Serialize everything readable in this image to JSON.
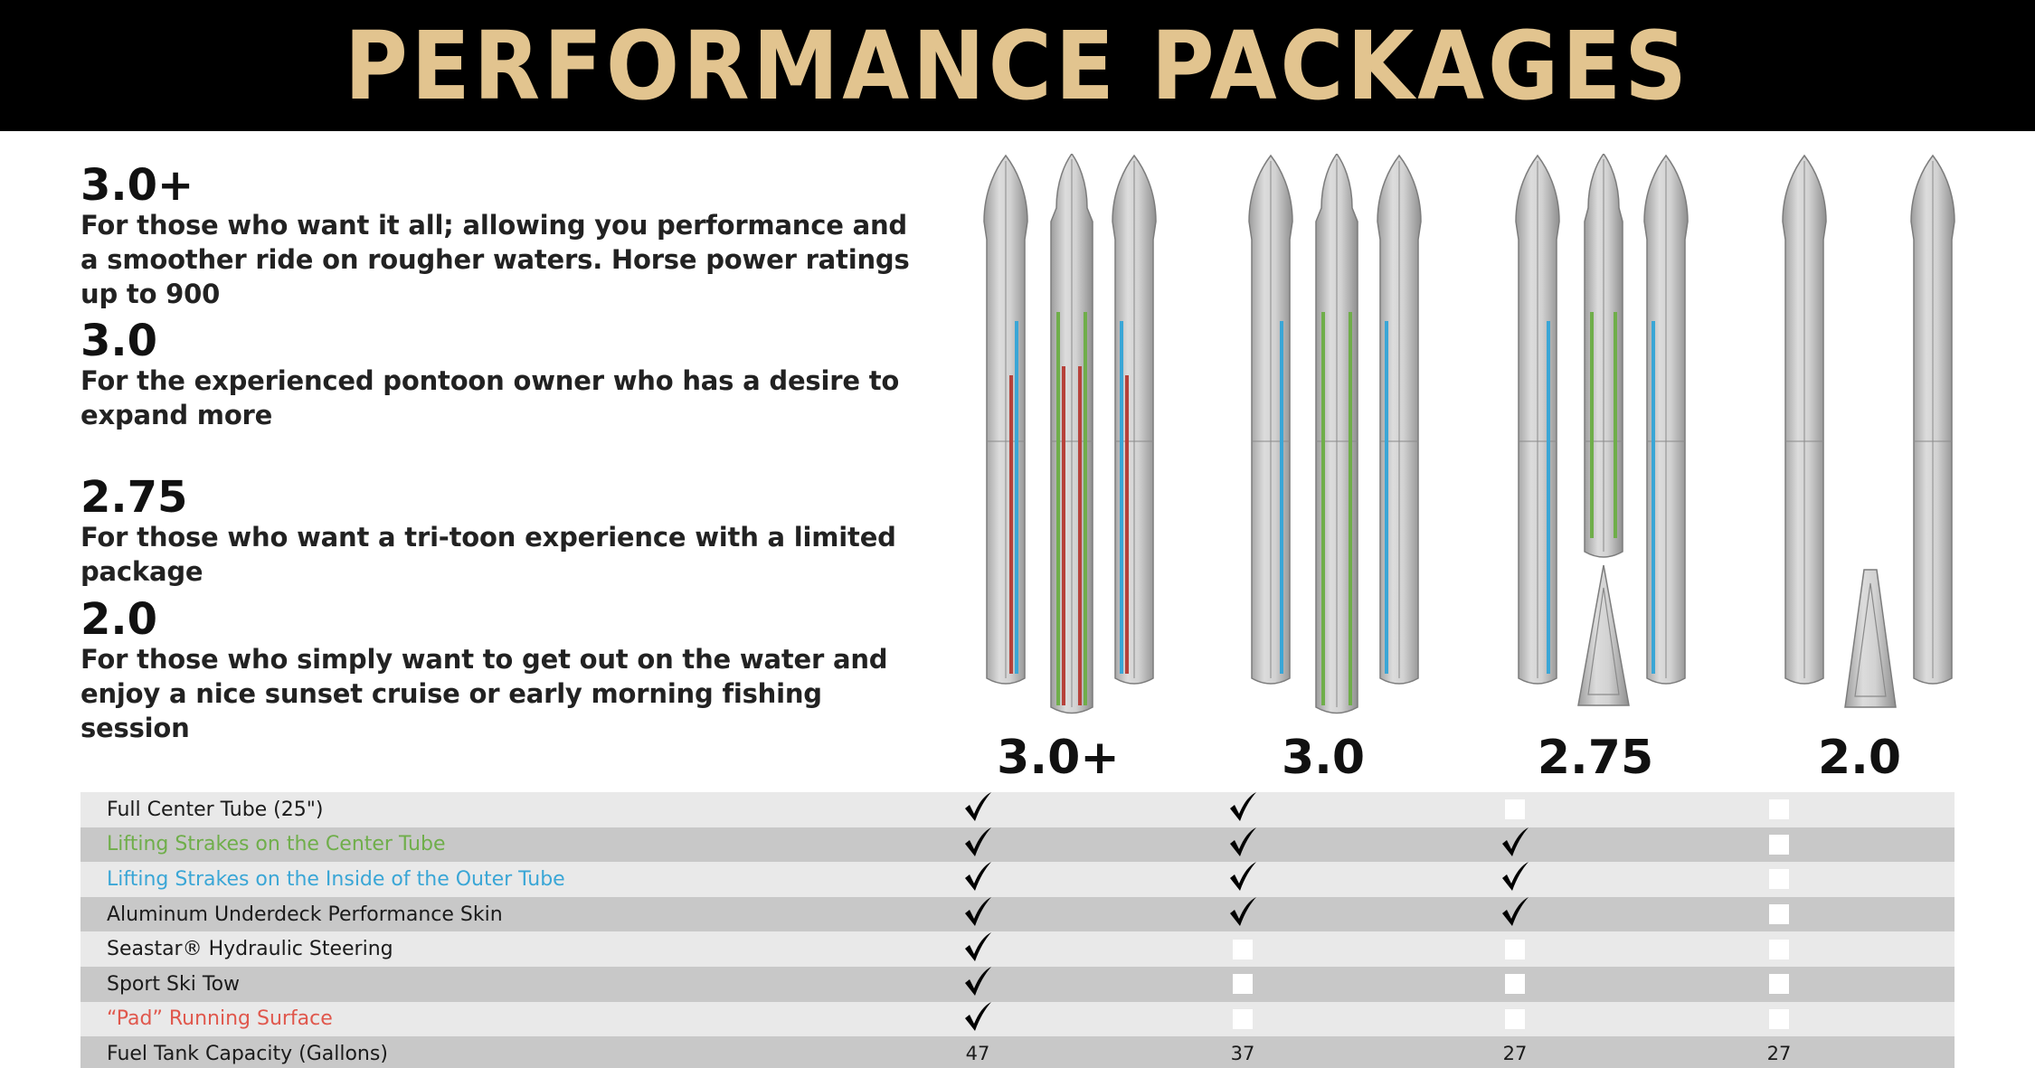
{
  "header": {
    "title": "PERFORMANCE PACKAGES"
  },
  "packages": [
    {
      "name": "3.0+",
      "description": "For those who want it all; allowing you performance and a smoother ride on rougher waters. Horse power ratings up to 900"
    },
    {
      "name": "3.0",
      "description": "For the experienced pontoon owner who has a desire to expand more"
    },
    {
      "name": "2.75",
      "description": "For those who want a tri-toon experience with a limited package"
    },
    {
      "name": "2.0",
      "description": "For those who simply want to get out on the water and enjoy a nice sunset cruise or early morning fishing session"
    }
  ],
  "columns": [
    "3.0+",
    "3.0",
    "2.75",
    "2.0"
  ],
  "colors": {
    "header_bg": "#000000",
    "title": "#e2c48f",
    "center_strake": "#6fae4a",
    "outer_strake": "#3aa6d6",
    "pad_surface": "#b7413a",
    "tube": "#c9c9c9"
  },
  "features": [
    {
      "label": "Full Center Tube (25\")",
      "color": "default",
      "values": [
        true,
        true,
        false,
        false
      ]
    },
    {
      "label": "Lifting Strakes on the Center Tube",
      "color": "green",
      "values": [
        true,
        true,
        true,
        false
      ]
    },
    {
      "label": "Lifting Strakes on the Inside of the Outer Tube",
      "color": "blue",
      "values": [
        true,
        true,
        true,
        false
      ]
    },
    {
      "label": "Aluminum Underdeck Performance Skin",
      "color": "default",
      "values": [
        true,
        true,
        true,
        false
      ]
    },
    {
      "label": "Seastar® Hydraulic Steering",
      "color": "default",
      "values": [
        true,
        false,
        false,
        false
      ]
    },
    {
      "label": "Sport Ski Tow",
      "color": "default",
      "values": [
        true,
        false,
        false,
        false
      ]
    },
    {
      "label": "“Pad” Running Surface",
      "color": "red",
      "values": [
        true,
        false,
        false,
        false
      ]
    },
    {
      "label": "Fuel Tank Capacity (Gallons)",
      "color": "default",
      "values": [
        "47",
        "37",
        "27",
        "27"
      ]
    }
  ]
}
